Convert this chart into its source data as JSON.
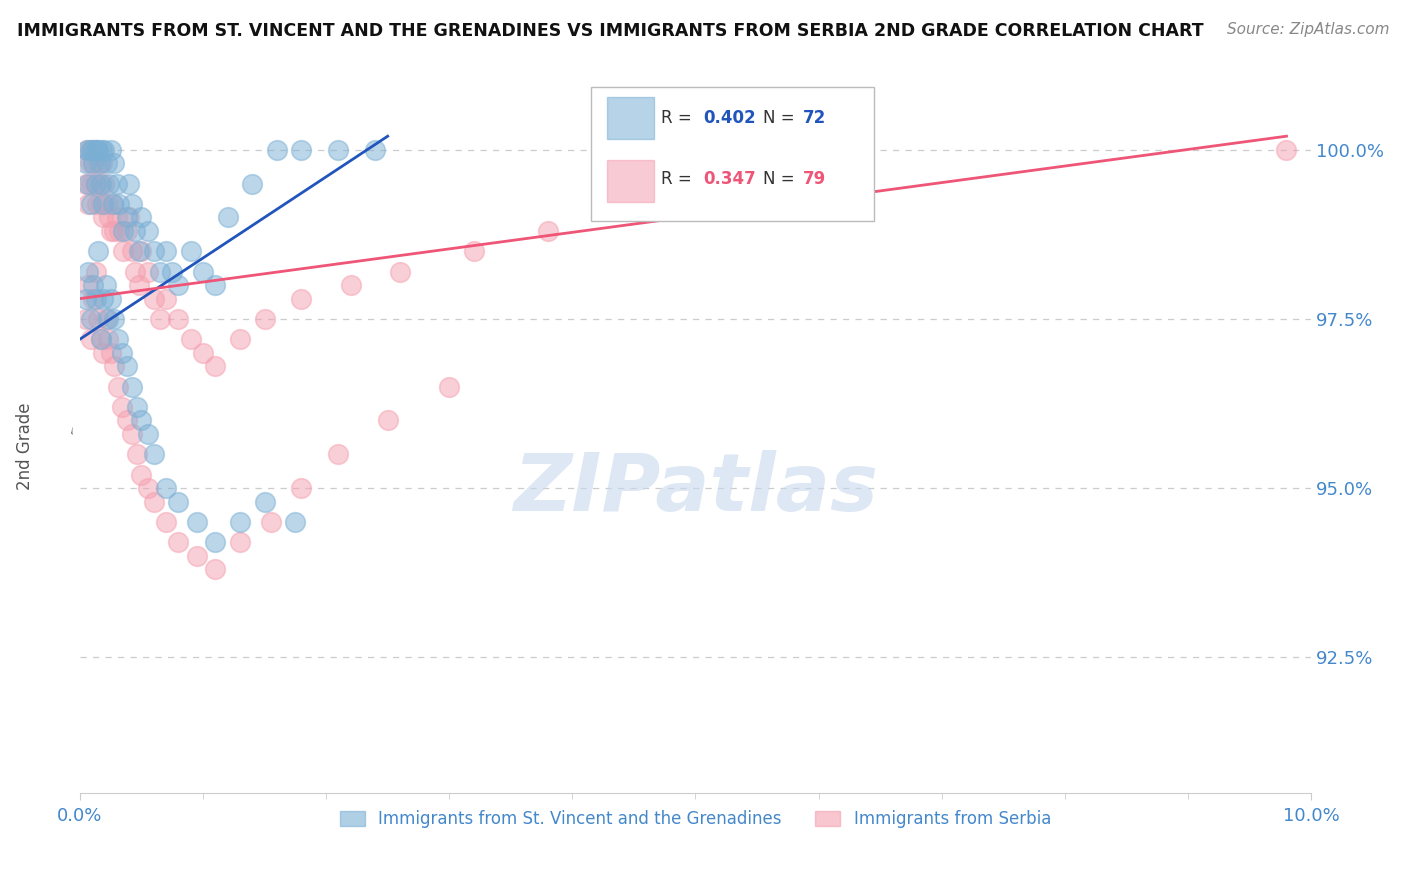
{
  "title": "IMMIGRANTS FROM ST. VINCENT AND THE GRENADINES VS IMMIGRANTS FROM SERBIA 2ND GRADE CORRELATION CHART",
  "source": "Source: ZipAtlas.com",
  "legend1_label": "Immigrants from St. Vincent and the Grenadines",
  "legend2_label": "Immigrants from Serbia",
  "r1": 0.402,
  "n1": 72,
  "r2": 0.347,
  "n2": 79,
  "blue_color": "#7BAFD4",
  "pink_color": "#F4A0B0",
  "blue_line_color": "#2255BB",
  "pink_line_color": "#EE5577",
  "title_color": "#111111",
  "axis_label_color": "#4488CC",
  "legend_r1_color": "#2255BB",
  "legend_r2_color": "#EE5577",
  "xlim": [
    0.0,
    10.0
  ],
  "ylim": [
    90.5,
    101.2
  ],
  "yticks": [
    92.5,
    95.0,
    97.5,
    100.0
  ],
  "yticklabels": [
    "92.5%",
    "95.0%",
    "97.5%",
    "100.0%"
  ],
  "blue_x": [
    0.05,
    0.06,
    0.07,
    0.08,
    0.09,
    0.1,
    0.11,
    0.12,
    0.13,
    0.14,
    0.15,
    0.16,
    0.17,
    0.18,
    0.19,
    0.2,
    0.22,
    0.24,
    0.25,
    0.27,
    0.28,
    0.3,
    0.32,
    0.35,
    0.38,
    0.4,
    0.42,
    0.45,
    0.48,
    0.5,
    0.55,
    0.6,
    0.65,
    0.7,
    0.75,
    0.8,
    0.9,
    1.0,
    1.1,
    1.2,
    1.4,
    1.6,
    1.8,
    2.1,
    2.4,
    0.05,
    0.07,
    0.09,
    0.11,
    0.13,
    0.15,
    0.17,
    0.19,
    0.21,
    0.23,
    0.25,
    0.28,
    0.31,
    0.34,
    0.38,
    0.42,
    0.46,
    0.5,
    0.55,
    0.6,
    0.7,
    0.8,
    0.95,
    1.1,
    1.3,
    1.5,
    1.75
  ],
  "blue_y": [
    99.8,
    100.0,
    99.5,
    100.0,
    99.2,
    100.0,
    99.8,
    100.0,
    99.5,
    100.0,
    100.0,
    99.8,
    99.5,
    100.0,
    99.2,
    100.0,
    99.8,
    99.5,
    100.0,
    99.2,
    99.8,
    99.5,
    99.2,
    98.8,
    99.0,
    99.5,
    99.2,
    98.8,
    98.5,
    99.0,
    98.8,
    98.5,
    98.2,
    98.5,
    98.2,
    98.0,
    98.5,
    98.2,
    98.0,
    99.0,
    99.5,
    100.0,
    100.0,
    100.0,
    100.0,
    97.8,
    98.2,
    97.5,
    98.0,
    97.8,
    98.5,
    97.2,
    97.8,
    98.0,
    97.5,
    97.8,
    97.5,
    97.2,
    97.0,
    96.8,
    96.5,
    96.2,
    96.0,
    95.8,
    95.5,
    95.0,
    94.8,
    94.5,
    94.2,
    94.5,
    94.8,
    94.5
  ],
  "pink_x": [
    0.05,
    0.06,
    0.07,
    0.08,
    0.09,
    0.1,
    0.11,
    0.12,
    0.13,
    0.14,
    0.15,
    0.16,
    0.17,
    0.18,
    0.19,
    0.2,
    0.22,
    0.24,
    0.25,
    0.27,
    0.28,
    0.3,
    0.32,
    0.35,
    0.38,
    0.4,
    0.42,
    0.45,
    0.48,
    0.5,
    0.55,
    0.6,
    0.65,
    0.7,
    0.8,
    0.9,
    1.0,
    1.1,
    1.3,
    1.5,
    1.8,
    2.2,
    2.6,
    3.2,
    3.8,
    4.5,
    9.8,
    0.05,
    0.07,
    0.09,
    0.11,
    0.13,
    0.15,
    0.17,
    0.19,
    0.21,
    0.23,
    0.25,
    0.28,
    0.31,
    0.34,
    0.38,
    0.42,
    0.46,
    0.5,
    0.55,
    0.6,
    0.7,
    0.8,
    0.95,
    1.1,
    1.3,
    1.55,
    1.8,
    2.1,
    2.5,
    3.0
  ],
  "pink_y": [
    99.5,
    100.0,
    99.2,
    99.8,
    99.5,
    100.0,
    99.8,
    99.5,
    100.0,
    99.2,
    99.8,
    99.5,
    99.2,
    99.8,
    99.0,
    99.5,
    99.2,
    99.0,
    98.8,
    99.2,
    98.8,
    99.0,
    98.8,
    98.5,
    98.8,
    99.0,
    98.5,
    98.2,
    98.0,
    98.5,
    98.2,
    97.8,
    97.5,
    97.8,
    97.5,
    97.2,
    97.0,
    96.8,
    97.2,
    97.5,
    97.8,
    98.0,
    98.2,
    98.5,
    98.8,
    99.2,
    100.0,
    97.5,
    98.0,
    97.2,
    97.8,
    98.2,
    97.5,
    97.2,
    97.0,
    97.5,
    97.2,
    97.0,
    96.8,
    96.5,
    96.2,
    96.0,
    95.8,
    95.5,
    95.2,
    95.0,
    94.8,
    94.5,
    94.2,
    94.0,
    93.8,
    94.2,
    94.5,
    95.0,
    95.5,
    96.0,
    96.5
  ],
  "grid_color": "#CCCCCC",
  "background_color": "#FFFFFF",
  "blue_trend_x": [
    0.0,
    2.5
  ],
  "blue_trend_y": [
    97.2,
    100.2
  ],
  "pink_trend_x": [
    0.0,
    9.8
  ],
  "pink_trend_y": [
    97.8,
    100.2
  ]
}
